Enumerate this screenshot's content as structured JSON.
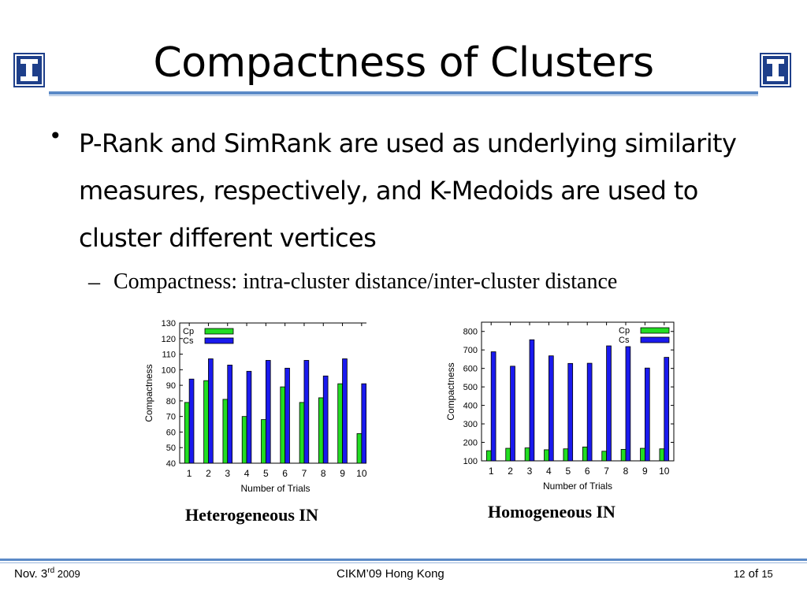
{
  "slide": {
    "title": "Compactness of Clusters",
    "bullet": "P-Rank and SimRank are used as underlying similarity measures, respectively, and K-Medoids are used to cluster different vertices",
    "subbullet_marker": "–",
    "subbullet": "Compactness: intra-cluster distance/inter-cluster distance",
    "footer": {
      "date_prefix": "Nov. 3",
      "date_sup": "rd",
      "date_suffix": " 2009",
      "venue_a": "CIKM’",
      "venue_b": "09 Hong Kong",
      "page_num": "12",
      "page_of": " of ",
      "page_total": "15"
    }
  },
  "colors": {
    "cp": "#22dd22",
    "cs": "#1a1aee",
    "accent": "#5b8ac7",
    "logo_blue": "#1e3f8a"
  },
  "chart_data": [
    {
      "type": "bar",
      "caption": "Heterogeneous IN",
      "xlabel": "Number of Trials",
      "ylabel": "Compactness",
      "categories": [
        "1",
        "2",
        "3",
        "4",
        "5",
        "6",
        "7",
        "8",
        "9",
        "10"
      ],
      "ylim": [
        40,
        130
      ],
      "yticks": [
        40,
        50,
        60,
        70,
        80,
        90,
        100,
        110,
        120,
        130
      ],
      "legend_position": "top-left",
      "grid": false,
      "series": [
        {
          "name": "Cp",
          "values": [
            79,
            93,
            81,
            70,
            68,
            89,
            79,
            82,
            91,
            59
          ]
        },
        {
          "name": "Cs",
          "values": [
            94,
            107,
            103,
            99,
            106,
            101,
            106,
            96,
            107,
            91
          ]
        }
      ]
    },
    {
      "type": "bar",
      "caption": "Homogeneous IN",
      "xlabel": "Number of Trials",
      "ylabel": "Compactness",
      "categories": [
        "1",
        "2",
        "3",
        "4",
        "5",
        "6",
        "7",
        "8",
        "9",
        "10"
      ],
      "ylim": [
        100,
        850
      ],
      "yticks": [
        100,
        200,
        300,
        400,
        500,
        600,
        700,
        800
      ],
      "legend_position": "top-right",
      "grid": false,
      "series": [
        {
          "name": "Cp",
          "values": [
            155,
            168,
            170,
            160,
            165,
            175,
            152,
            162,
            168,
            165
          ]
        },
        {
          "name": "Cs",
          "values": [
            690,
            612,
            755,
            668,
            627,
            628,
            722,
            718,
            602,
            660
          ]
        }
      ]
    }
  ]
}
